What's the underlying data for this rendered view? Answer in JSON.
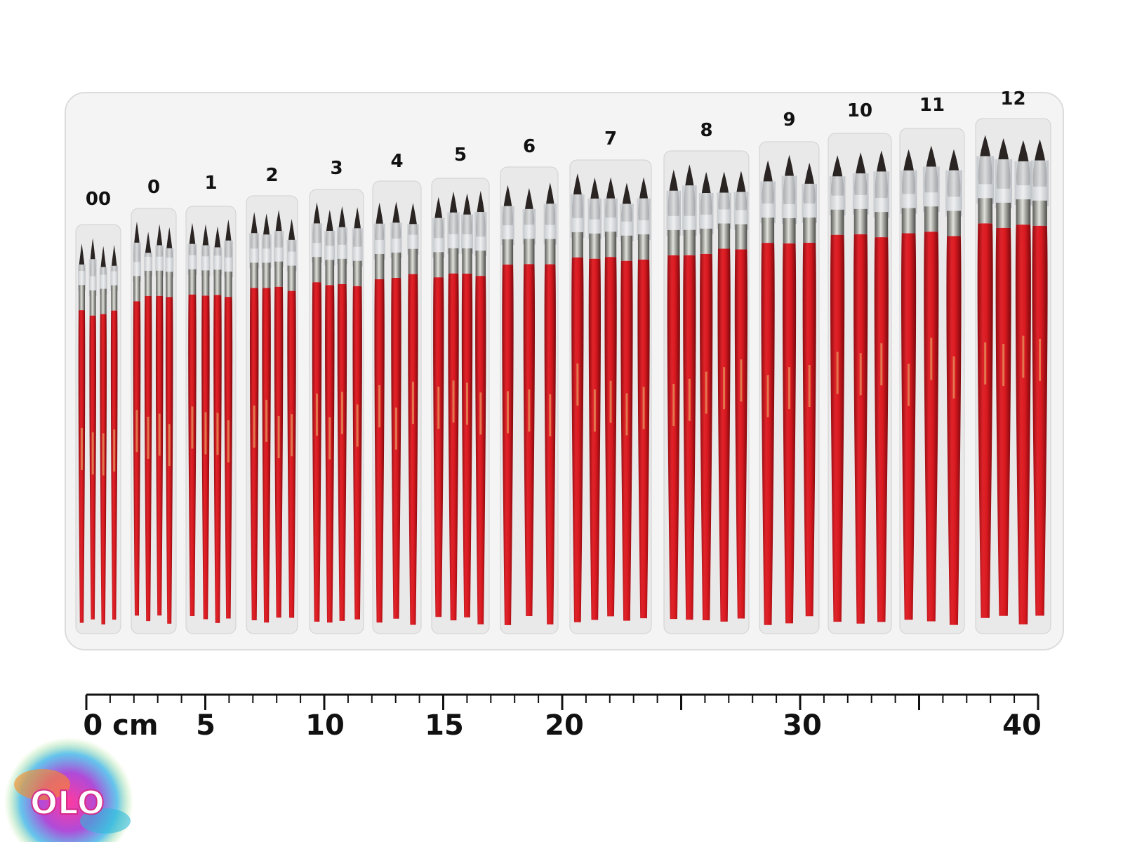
{
  "tray": {
    "sizes": [
      "00",
      "0",
      "1",
      "2",
      "3",
      "4",
      "5",
      "6",
      "7",
      "8",
      "9",
      "10",
      "11",
      "12"
    ]
  },
  "ruler": {
    "labels": [
      "0 cm",
      "5",
      "10",
      "15",
      "20",
      "30",
      "40"
    ]
  },
  "logo": {
    "text": "OLO"
  }
}
